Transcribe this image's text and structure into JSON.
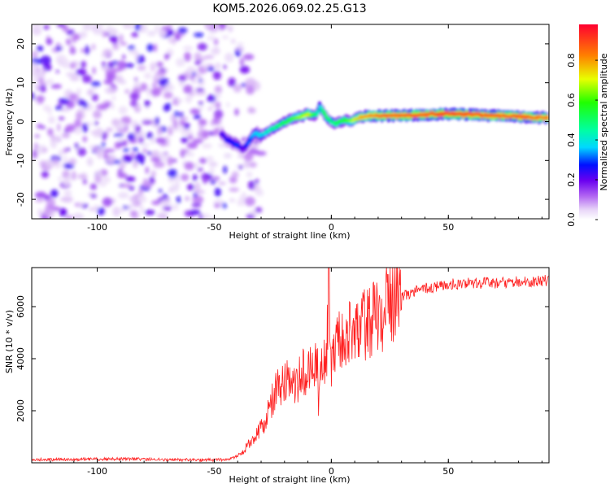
{
  "title": "KOM5.2026.069.02.25.G13",
  "chart_data": [
    {
      "type": "heatmap",
      "name": "spectrogram",
      "xlabel": "Height of straight line (km)",
      "ylabel": "Frequency (Hz)",
      "xlim": [
        -128,
        93
      ],
      "ylim": [
        -25,
        25
      ],
      "xticks": [
        -100,
        -50,
        0,
        50
      ],
      "xtick_labels": [
        "-100",
        "-50",
        "0",
        "50"
      ],
      "yticks": [
        -20,
        -10,
        0,
        10,
        20
      ],
      "ytick_labels": [
        "-20",
        "-10",
        "0",
        "10",
        "20"
      ],
      "colorbar": {
        "label": "Normalized spectral amplitude",
        "range": [
          0,
          0.98
        ],
        "ticks": [
          0.0,
          0.2,
          0.4,
          0.6,
          0.8
        ],
        "tick_labels": [
          "0.0",
          "0.2",
          "0.4",
          "0.6",
          "0.8"
        ]
      },
      "ridge": {
        "x": [
          -47,
          -45,
          -42,
          -40,
          -38,
          -36,
          -34,
          -32,
          -30,
          -27,
          -24,
          -21,
          -18,
          -15,
          -12,
          -10,
          -8,
          -6,
          -5,
          -4,
          -3,
          -2,
          0,
          2,
          4,
          6,
          8,
          10,
          12,
          15,
          20,
          30,
          40,
          50,
          60,
          70,
          80,
          90,
          93
        ],
        "freq": [
          -3,
          -4.5,
          -5.5,
          -6,
          -7,
          -6,
          -4,
          -3,
          -3.5,
          -2.5,
          -1.5,
          -0.5,
          0.5,
          1,
          1.5,
          2,
          1.5,
          2,
          4,
          3,
          2,
          1,
          0,
          -0.5,
          0,
          0.5,
          0,
          0.5,
          1,
          1.5,
          1.5,
          1.5,
          1.8,
          2,
          1.8,
          1.5,
          1.3,
          1,
          1
        ],
        "amplitude": [
          0.22,
          0.25,
          0.28,
          0.3,
          0.2,
          0.3,
          0.35,
          0.38,
          0.4,
          0.45,
          0.5,
          0.55,
          0.6,
          0.65,
          0.7,
          0.75,
          0.6,
          0.5,
          0.4,
          0.5,
          0.6,
          0.55,
          0.5,
          0.55,
          0.6,
          0.6,
          0.65,
          0.75,
          0.8,
          0.85,
          0.9,
          0.92,
          0.95,
          0.97,
          0.95,
          0.93,
          0.92,
          0.9,
          0.9
        ]
      }
    },
    {
      "type": "line",
      "name": "snr",
      "xlabel": "Height of straight line (km)",
      "ylabel": "SNR (10 * v/v)",
      "xlim": [
        -128,
        93
      ],
      "ylim": [
        0,
        7500
      ],
      "xticks": [
        -100,
        -50,
        0,
        50
      ],
      "xtick_labels": [
        "-100",
        "-50",
        "0",
        "50"
      ],
      "yticks": [
        2000,
        4000,
        6000
      ],
      "ytick_labels": [
        "2000",
        "4000",
        "6000"
      ],
      "series": [
        {
          "name": "SNR",
          "color": "#ff2020",
          "x": [
            -128,
            -110,
            -90,
            -70,
            -55,
            -45,
            -40,
            -37,
            -34,
            -30,
            -27,
            -24,
            -20,
            -16,
            -12,
            -9,
            -6,
            -4,
            -2,
            -1,
            0,
            1,
            3,
            6,
            10,
            15,
            20,
            25,
            30,
            40,
            50,
            60,
            70,
            80,
            90,
            93
          ],
          "y": [
            120,
            130,
            150,
            120,
            100,
            120,
            250,
            500,
            900,
            1300,
            1900,
            2800,
            3100,
            3300,
            3600,
            3500,
            3700,
            3900,
            4300,
            7500,
            4000,
            4400,
            4600,
            4800,
            5000,
            5300,
            5700,
            6100,
            6400,
            6700,
            6850,
            6900,
            6900,
            6950,
            7000,
            7000
          ]
        }
      ]
    }
  ]
}
